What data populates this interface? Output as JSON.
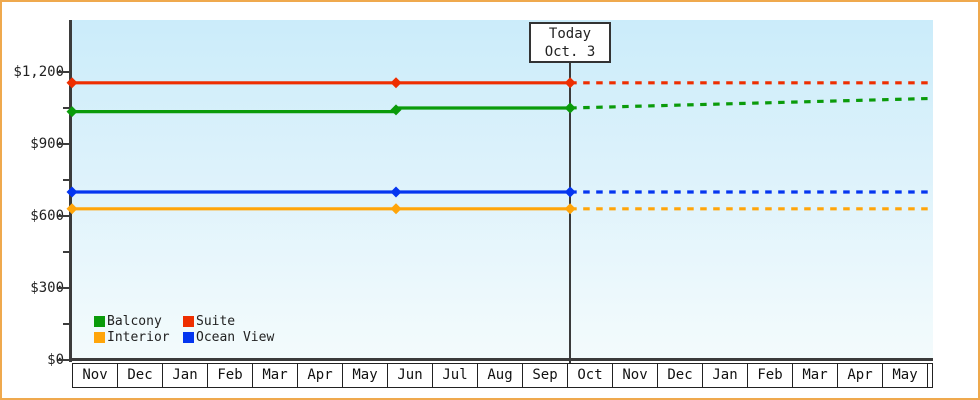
{
  "window": {
    "border_color": "#efa94e",
    "background": "#ffffff"
  },
  "chart_data": {
    "type": "line",
    "description": "Cruise cabin price history and dashed price forecast by cabin type",
    "currency": "USD",
    "y_axis": {
      "tick_values": [
        1200,
        900,
        600,
        300,
        0
      ],
      "tick_labels": [
        "$1,200",
        "$900",
        "$600",
        "$300",
        "$0"
      ],
      "minor_tick_values": [
        1050,
        750,
        450,
        150
      ],
      "min": 0,
      "max": 1416,
      "grid": false
    },
    "x_axis": {
      "month_labels": [
        "Nov",
        "Dec",
        "Jan",
        "Feb",
        "Mar",
        "Apr",
        "May",
        "Jun",
        "Jul",
        "Aug",
        "Sep",
        "Oct",
        "Nov",
        "Dec",
        "Jan",
        "Feb",
        "Mar",
        "Apr",
        "May"
      ],
      "months_visible": 19.13
    },
    "today": {
      "line1": "Today",
      "line2": "Oct. 3",
      "month_offset": 11.07
    },
    "series": [
      {
        "name": "Suite",
        "color": "#ee2e00",
        "history": [
          [
            0,
            1155
          ],
          [
            7.2,
            1155
          ],
          [
            11.07,
            1155
          ]
        ],
        "forecast": [
          [
            11.07,
            1155
          ],
          [
            19.13,
            1155
          ]
        ],
        "marker_points": [
          [
            0,
            1155
          ],
          [
            7.2,
            1155
          ],
          [
            11.07,
            1155
          ]
        ]
      },
      {
        "name": "Balcony",
        "color": "#0a9b0a",
        "history": [
          [
            0,
            1035
          ],
          [
            7.2,
            1035
          ],
          [
            7.2,
            1050
          ],
          [
            11.07,
            1050
          ]
        ],
        "forecast": [
          [
            11.07,
            1050
          ],
          [
            19.13,
            1090
          ]
        ],
        "marker_points": [
          [
            0,
            1035
          ],
          [
            7.2,
            1042
          ],
          [
            11.07,
            1050
          ]
        ]
      },
      {
        "name": "Ocean View",
        "color": "#0435f0",
        "history": [
          [
            0,
            700
          ],
          [
            7.2,
            700
          ],
          [
            11.07,
            700
          ]
        ],
        "forecast": [
          [
            11.07,
            700
          ],
          [
            19.13,
            700
          ]
        ],
        "marker_points": [
          [
            0,
            700
          ],
          [
            7.2,
            700
          ],
          [
            11.07,
            700
          ]
        ]
      },
      {
        "name": "Interior",
        "color": "#ffa50a",
        "history": [
          [
            0,
            630
          ],
          [
            7.2,
            630
          ],
          [
            11.07,
            630
          ]
        ],
        "forecast": [
          [
            11.07,
            630
          ],
          [
            19.13,
            630
          ]
        ],
        "marker_points": [
          [
            0,
            630
          ],
          [
            7.2,
            630
          ],
          [
            11.07,
            630
          ]
        ]
      }
    ],
    "legend": {
      "position": "bottom-left-inside-plot",
      "items": [
        {
          "label": "Balcony",
          "color": "#0a9b0a"
        },
        {
          "label": "Suite",
          "color": "#ee2e00"
        },
        {
          "label": "Interior",
          "color": "#ffa50a"
        },
        {
          "label": "Ocean View",
          "color": "#0435f0"
        }
      ]
    }
  }
}
